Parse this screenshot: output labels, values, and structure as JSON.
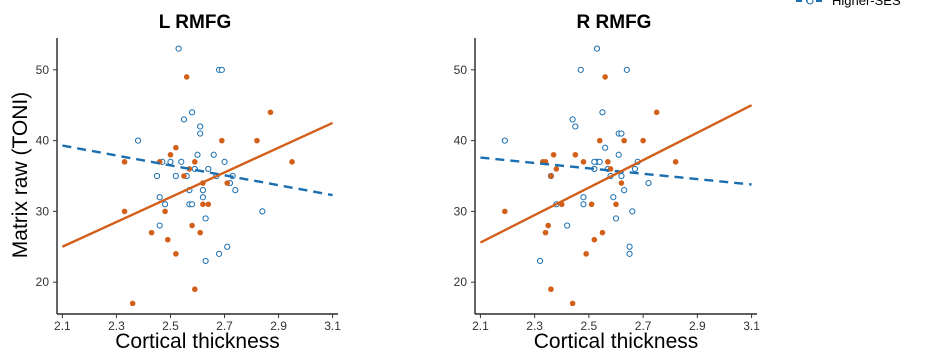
{
  "figure": {
    "ylabel": "Matrix raw (TONI)",
    "legend": {
      "placement": "top-right",
      "label": "Higher-SES"
    },
    "colors": {
      "higher_ses": "#1a6fb0",
      "lower_ses": "#d2601a",
      "axis": "#000000"
    }
  },
  "chart_data": [
    {
      "type": "scatter",
      "title": "L RMFG",
      "xlabel": "Cortical thickness",
      "ylabel": "Matrix raw (TONI)",
      "xlim": [
        2.08,
        3.12
      ],
      "ylim": [
        15.5,
        54.5
      ],
      "x_ticks": [
        "2.1",
        "2.3",
        "2.5",
        "2.7",
        "2.9",
        "3.1"
      ],
      "y_ticks": [
        "20",
        "30",
        "40",
        "50"
      ],
      "grid": false,
      "series": [
        {
          "name": "Higher-SES",
          "marker": "open-circle",
          "fit": "dashed",
          "fit_line": [
            [
              2.1,
              39.3
            ],
            [
              3.1,
              32.3
            ]
          ],
          "points": [
            [
              2.38,
              40
            ],
            [
              2.45,
              35
            ],
            [
              2.46,
              32
            ],
            [
              2.47,
              37
            ],
            [
              2.48,
              31
            ],
            [
              2.52,
              35
            ],
            [
              2.53,
              53
            ],
            [
              2.54,
              37
            ],
            [
              2.55,
              43
            ],
            [
              2.56,
              35
            ],
            [
              2.57,
              31
            ],
            [
              2.57,
              33
            ],
            [
              2.58,
              44
            ],
            [
              2.58,
              31
            ],
            [
              2.59,
              36
            ],
            [
              2.6,
              38
            ],
            [
              2.61,
              42
            ],
            [
              2.61,
              41
            ],
            [
              2.62,
              32
            ],
            [
              2.62,
              33
            ],
            [
              2.63,
              29
            ],
            [
              2.63,
              23
            ],
            [
              2.64,
              36
            ],
            [
              2.66,
              38
            ],
            [
              2.67,
              35
            ],
            [
              2.68,
              24
            ],
            [
              2.68,
              50
            ],
            [
              2.69,
              50
            ],
            [
              2.7,
              37
            ],
            [
              2.71,
              25
            ],
            [
              2.72,
              34
            ],
            [
              2.74,
              33
            ],
            [
              2.73,
              35
            ],
            [
              2.84,
              30
            ],
            [
              2.46,
              28
            ],
            [
              2.5,
              37
            ]
          ]
        },
        {
          "name": "",
          "marker": "filled-circle",
          "fit": "solid",
          "fit_line": [
            [
              2.1,
              25
            ],
            [
              3.1,
              42.5
            ]
          ],
          "points": [
            [
              2.33,
              37
            ],
            [
              2.33,
              30
            ],
            [
              2.36,
              17
            ],
            [
              2.43,
              27
            ],
            [
              2.46,
              37
            ],
            [
              2.48,
              30
            ],
            [
              2.49,
              26
            ],
            [
              2.5,
              38
            ],
            [
              2.52,
              39
            ],
            [
              2.52,
              24
            ],
            [
              2.55,
              35
            ],
            [
              2.56,
              49
            ],
            [
              2.57,
              36
            ],
            [
              2.58,
              28
            ],
            [
              2.59,
              37
            ],
            [
              2.59,
              19
            ],
            [
              2.61,
              27
            ],
            [
              2.62,
              31
            ],
            [
              2.62,
              34
            ],
            [
              2.64,
              31
            ],
            [
              2.69,
              40
            ],
            [
              2.71,
              34
            ],
            [
              2.82,
              40
            ],
            [
              2.87,
              44
            ],
            [
              2.95,
              37
            ]
          ]
        }
      ]
    },
    {
      "type": "scatter",
      "title": "R RMFG",
      "xlabel": "Cortical thickness",
      "ylabel": "",
      "xlim": [
        2.08,
        3.12
      ],
      "ylim": [
        15.5,
        54.5
      ],
      "x_ticks": [
        "2.1",
        "2.3",
        "2.5",
        "2.7",
        "2.9",
        "3.1"
      ],
      "y_ticks": [
        "20",
        "30",
        "40",
        "50"
      ],
      "grid": false,
      "series": [
        {
          "name": "Higher-SES",
          "marker": "open-circle",
          "fit": "dashed",
          "fit_line": [
            [
              2.1,
              37.6
            ],
            [
              3.1,
              33.8
            ]
          ],
          "points": [
            [
              2.19,
              40
            ],
            [
              2.32,
              23
            ],
            [
              2.36,
              35
            ],
            [
              2.38,
              31
            ],
            [
              2.42,
              28
            ],
            [
              2.44,
              43
            ],
            [
              2.45,
              42
            ],
            [
              2.47,
              50
            ],
            [
              2.48,
              31
            ],
            [
              2.48,
              32
            ],
            [
              2.52,
              36
            ],
            [
              2.53,
              53
            ],
            [
              2.53,
              37
            ],
            [
              2.54,
              37
            ],
            [
              2.55,
              44
            ],
            [
              2.56,
              39
            ],
            [
              2.57,
              36
            ],
            [
              2.58,
              35
            ],
            [
              2.59,
              32
            ],
            [
              2.6,
              29
            ],
            [
              2.61,
              38
            ],
            [
              2.61,
              41
            ],
            [
              2.62,
              41
            ],
            [
              2.63,
              33
            ],
            [
              2.64,
              50
            ],
            [
              2.65,
              25
            ],
            [
              2.65,
              24
            ],
            [
              2.66,
              30
            ],
            [
              2.67,
              36
            ],
            [
              2.68,
              37
            ],
            [
              2.72,
              34
            ],
            [
              2.62,
              35
            ],
            [
              2.52,
              37
            ]
          ]
        },
        {
          "name": "",
          "marker": "filled-circle",
          "fit": "solid",
          "fit_line": [
            [
              2.1,
              25.6
            ],
            [
              3.1,
              45
            ]
          ],
          "points": [
            [
              2.19,
              30
            ],
            [
              2.33,
              37
            ],
            [
              2.34,
              37
            ],
            [
              2.34,
              27
            ],
            [
              2.35,
              28
            ],
            [
              2.36,
              35
            ],
            [
              2.36,
              19
            ],
            [
              2.37,
              38
            ],
            [
              2.38,
              36
            ],
            [
              2.4,
              31
            ],
            [
              2.45,
              38
            ],
            [
              2.48,
              37
            ],
            [
              2.49,
              24
            ],
            [
              2.51,
              31
            ],
            [
              2.52,
              26
            ],
            [
              2.54,
              40
            ],
            [
              2.55,
              27
            ],
            [
              2.56,
              49
            ],
            [
              2.57,
              37
            ],
            [
              2.58,
              36
            ],
            [
              2.6,
              31
            ],
            [
              2.62,
              34
            ],
            [
              2.63,
              40
            ],
            [
              2.7,
              40
            ],
            [
              2.75,
              44
            ],
            [
              2.82,
              37
            ],
            [
              2.44,
              17
            ]
          ]
        }
      ]
    }
  ]
}
